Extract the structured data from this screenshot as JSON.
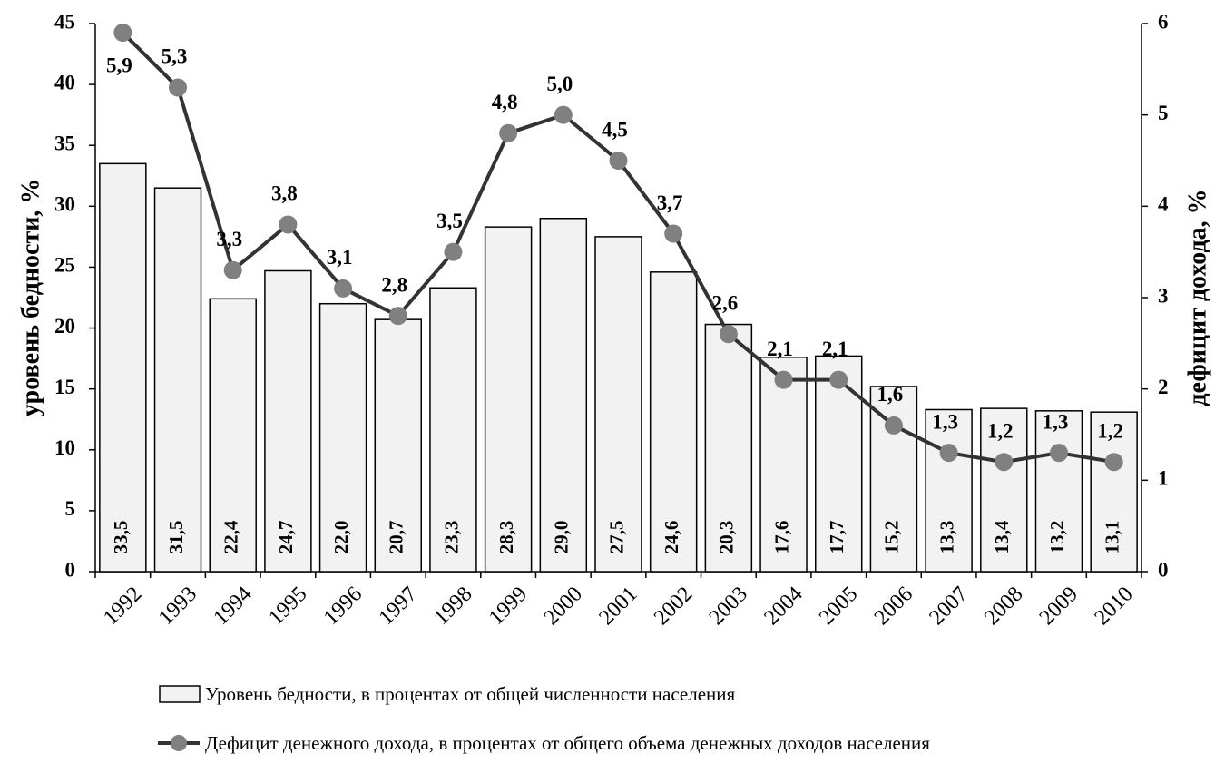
{
  "chart_data": {
    "type": "bar",
    "categories": [
      "1992",
      "1993",
      "1994",
      "1995",
      "1996",
      "1997",
      "1998",
      "1999",
      "2000",
      "2001",
      "2002",
      "2003",
      "2004",
      "2005",
      "2006",
      "2007",
      "2008",
      "2009",
      "2010"
    ],
    "ylabel": "уровень бедности, %",
    "y2label": "дефицит дохода, %",
    "ylim": [
      0,
      45
    ],
    "yticks": [
      0,
      5,
      10,
      15,
      20,
      25,
      30,
      35,
      40,
      45
    ],
    "y2lim": [
      0,
      6
    ],
    "y2ticks": [
      0,
      1,
      2,
      3,
      4,
      5,
      6
    ],
    "series": [
      {
        "name": "Уровень бедности, в процентах от общей численности населения",
        "type": "bar",
        "color": "#f2f2f2",
        "values": [
          33.5,
          31.5,
          22.4,
          24.7,
          22.0,
          20.7,
          23.3,
          28.3,
          29.0,
          27.5,
          24.6,
          20.3,
          17.6,
          17.7,
          15.2,
          13.3,
          13.4,
          13.2,
          13.1
        ],
        "value_labels": [
          "33,5",
          "31,5",
          "22,4",
          "24,7",
          "22,0",
          "20,7",
          "23,3",
          "28,3",
          "29,0",
          "27,5",
          "24,6",
          "20,3",
          "17,6",
          "17,7",
          "15,2",
          "13,3",
          "13,4",
          "13,2",
          "13,1"
        ]
      },
      {
        "name": "Дефицит денежного дохода, в процентах от общего объема денежных доходов населения",
        "type": "line",
        "axis": "y2",
        "color": "#333333",
        "marker_color": "#808080",
        "values": [
          5.9,
          5.3,
          3.3,
          3.8,
          3.1,
          2.8,
          3.5,
          4.8,
          5.0,
          4.5,
          3.7,
          2.6,
          2.1,
          2.1,
          1.6,
          1.3,
          1.2,
          1.3,
          1.2
        ],
        "value_labels": [
          "5,9",
          "5,3",
          "3,3",
          "3,8",
          "3,1",
          "2,8",
          "3,5",
          "4,8",
          "5,0",
          "4,5",
          "3,7",
          "2,6",
          "2,1",
          "2,1",
          "1,6",
          "1,3",
          "1,2",
          "1,3",
          "1,2"
        ]
      }
    ]
  }
}
